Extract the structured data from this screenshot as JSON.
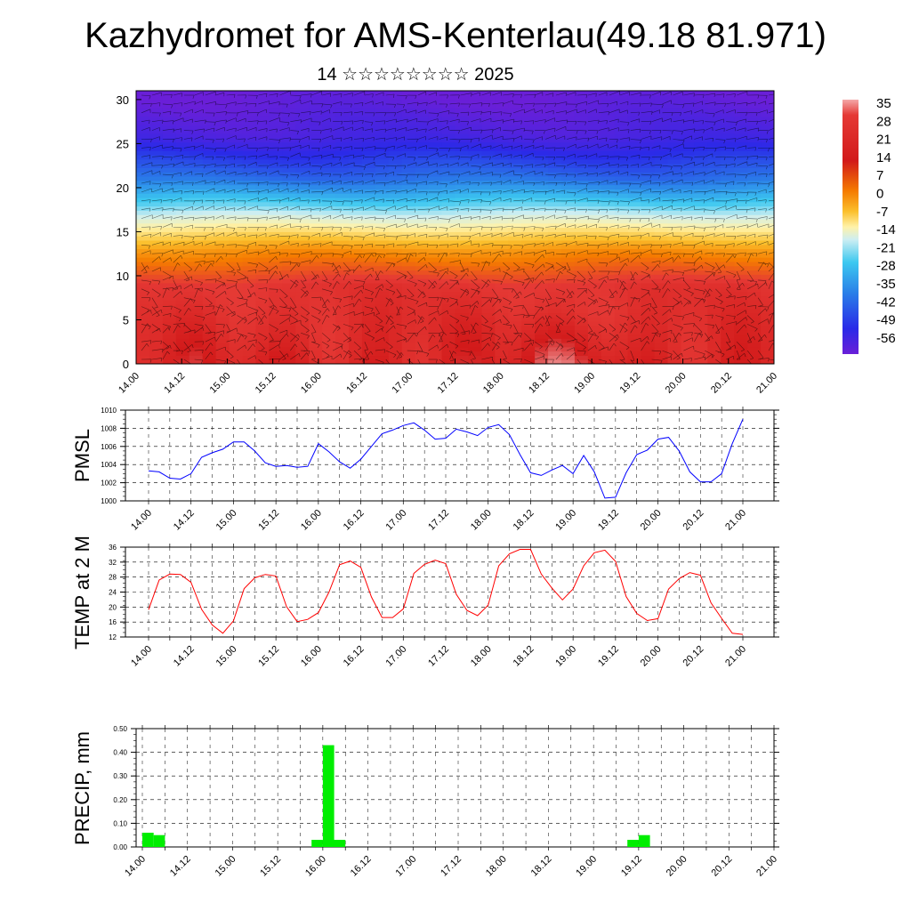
{
  "page": {
    "title": "Kazhydromet for AMS-Kenterlau(49.18 81.971)",
    "subtitle": "14 ☆☆☆☆☆☆☆☆ 2025"
  },
  "chart_data": [
    {
      "type": "heatmap",
      "name": "vertical-temperature-section",
      "title": "",
      "xlabel": "",
      "ylabel": "",
      "x_tick_labels": [
        "14.00",
        "14.12",
        "15.00",
        "15.12",
        "16.00",
        "16.12",
        "17.00",
        "17.12",
        "18.00",
        "18.12",
        "19.00",
        "19.12",
        "20.00",
        "20.12",
        "21.00"
      ],
      "y_tick_labels": [
        "0",
        "5",
        "10",
        "15",
        "20",
        "25",
        "30"
      ],
      "ylim": [
        0,
        31
      ],
      "colorbar_labels": [
        "35",
        "28",
        "21",
        "14",
        "7",
        "0",
        "-7",
        "-14",
        "-21",
        "-28",
        "-35",
        "-42",
        "-49",
        "-56"
      ],
      "colorbar_range": [
        -60,
        38
      ],
      "colors": [
        "#6a1fd8",
        "#2a2ae8",
        "#2a7fe8",
        "#3cc8f0",
        "#cdeef2",
        "#fff2a8",
        "#fbc02d",
        "#f57c00",
        "#e53935",
        "#d21a1a",
        "#f4a8a8"
      ],
      "profile": {
        "heights": [
          0,
          9,
          13,
          15.5,
          18,
          21,
          26,
          31
        ],
        "temperatures": [
          25,
          20,
          5,
          -10,
          -28,
          -42,
          -55,
          -60
        ]
      },
      "wind_barbs": true
    },
    {
      "type": "line",
      "name": "PMSL",
      "ylabel": "PMSL",
      "ylim": [
        1000,
        1010
      ],
      "y_tick_labels": [
        "1000",
        "1002",
        "1004",
        "1006",
        "1008",
        "1010"
      ],
      "x_tick_labels": [
        "14.00",
        "14.12",
        "15.00",
        "15.12",
        "16.00",
        "16.12",
        "17.00",
        "17.12",
        "18.00",
        "18.12",
        "19.00",
        "19.12",
        "20.00",
        "20.12",
        "21.00"
      ],
      "line_color": "#0000ff",
      "x_hours": [
        0,
        3,
        6,
        9,
        12,
        15,
        18,
        21,
        24,
        27,
        30,
        33,
        36,
        39,
        42,
        45,
        48,
        51,
        54,
        57,
        60,
        63,
        66,
        69,
        72,
        75,
        78,
        81,
        84,
        87,
        90,
        93,
        96,
        99,
        102,
        105,
        108,
        111,
        114,
        117,
        120,
        123,
        126,
        129,
        132,
        135,
        138,
        141,
        144,
        147,
        150,
        153,
        156,
        159,
        162,
        165,
        168
      ],
      "values": [
        1003.3,
        1003.2,
        1002.5,
        1002.4,
        1003.0,
        1004.8,
        1005.3,
        1005.7,
        1006.5,
        1006.5,
        1005.5,
        1004.2,
        1003.8,
        1003.9,
        1003.7,
        1003.8,
        1006.3,
        1005.4,
        1004.3,
        1003.6,
        1004.6,
        1006.0,
        1007.4,
        1007.8,
        1008.3,
        1008.6,
        1007.8,
        1006.8,
        1006.9,
        1007.9,
        1007.6,
        1007.2,
        1008.1,
        1008.4,
        1007.3,
        1005.1,
        1003.1,
        1002.8,
        1003.4,
        1003.9,
        1003.0,
        1005.0,
        1003.2,
        1000.3,
        1000.4,
        1003.1,
        1005.1,
        1005.6,
        1006.8,
        1007.0,
        1005.5,
        1003.2,
        1002.1,
        1002.1,
        1003.0,
        1006.3,
        1009.0
      ]
    },
    {
      "type": "line",
      "name": "TEMP at 2 M",
      "ylabel": "TEMP at 2 M",
      "ylim": [
        12,
        36
      ],
      "y_tick_labels": [
        "12",
        "16",
        "20",
        "24",
        "28",
        "32",
        "36"
      ],
      "x_tick_labels": [
        "14.00",
        "14.12",
        "15.00",
        "15.12",
        "16.00",
        "16.12",
        "17.00",
        "17.12",
        "18.00",
        "18.12",
        "19.00",
        "19.12",
        "20.00",
        "20.12",
        "21.00"
      ],
      "line_color": "#ff0000",
      "x_hours": [
        0,
        3,
        6,
        9,
        12,
        15,
        18,
        21,
        24,
        27,
        30,
        33,
        36,
        39,
        42,
        45,
        48,
        51,
        54,
        57,
        60,
        63,
        66,
        69,
        72,
        75,
        78,
        81,
        84,
        87,
        90,
        93,
        96,
        99,
        102,
        105,
        108,
        111,
        114,
        117,
        120,
        123,
        126,
        129,
        132,
        135,
        138,
        141,
        144,
        147,
        150,
        153,
        156,
        159,
        162,
        165,
        168
      ],
      "values": [
        19.3,
        27.2,
        28.8,
        28.7,
        26.6,
        19.4,
        15.2,
        13.0,
        16.3,
        24.9,
        27.8,
        28.7,
        28.3,
        20.1,
        16.1,
        16.7,
        18.5,
        24.0,
        31.3,
        32.3,
        30.6,
        22.7,
        17.2,
        17.2,
        19.5,
        29.0,
        31.4,
        32.5,
        31.6,
        23.4,
        19.1,
        17.7,
        20.5,
        31.0,
        34.2,
        35.4,
        35.4,
        28.8,
        25.1,
        21.9,
        24.8,
        31.0,
        34.5,
        35.2,
        32.2,
        22.8,
        18.3,
        16.4,
        16.9,
        24.8,
        27.6,
        29.2,
        28.5,
        21.1,
        17.0,
        13.0,
        12.7
      ]
    },
    {
      "type": "bar",
      "name": "PRECIP, mm",
      "ylabel": "PRECIP, mm",
      "ylim": [
        0,
        0.5
      ],
      "y_tick_labels": [
        "0.00",
        "0.10",
        "0.20",
        "0.30",
        "0.40",
        "0.50"
      ],
      "x_tick_labels": [
        "14.00",
        "14.12",
        "15.00",
        "15.12",
        "16.00",
        "16.12",
        "17.00",
        "17.12",
        "18.00",
        "18.12",
        "19.00",
        "19.12",
        "20.00",
        "20.12",
        "21.00"
      ],
      "bar_color": "#00ee00",
      "bars": [
        {
          "x_hour": 1.5,
          "value": 0.06
        },
        {
          "x_hour": 4.5,
          "value": 0.05
        },
        {
          "x_hour": 46.5,
          "value": 0.03
        },
        {
          "x_hour": 49.5,
          "value": 0.43
        },
        {
          "x_hour": 52.5,
          "value": 0.03
        },
        {
          "x_hour": 130.5,
          "value": 0.03
        },
        {
          "x_hour": 133.5,
          "value": 0.05
        }
      ]
    }
  ]
}
